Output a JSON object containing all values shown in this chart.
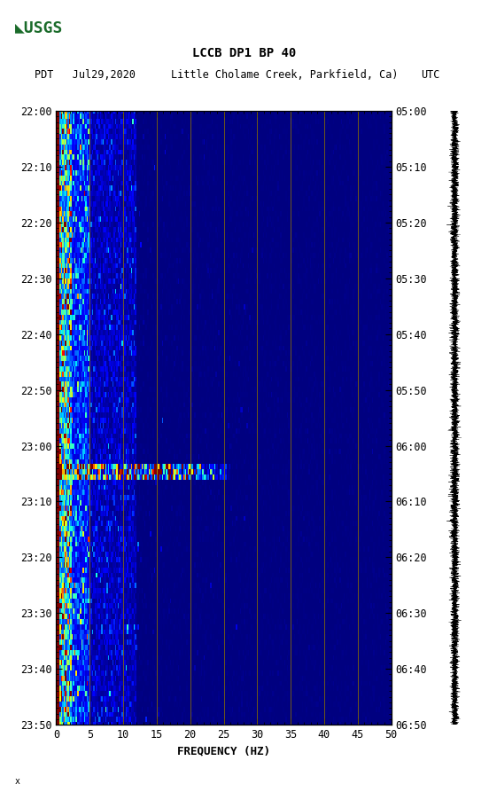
{
  "title_line1": "LCCB DP1 BP 40",
  "title_line2_left": "PDT   Jul29,2020",
  "title_line2_mid": "Little Cholame Creek, Parkfield, Ca)",
  "title_line2_right": "UTC",
  "xlabel": "FREQUENCY (HZ)",
  "freq_min": 0,
  "freq_max": 50,
  "left_ticks": [
    "22:00",
    "22:10",
    "22:20",
    "22:30",
    "22:40",
    "22:50",
    "23:00",
    "23:10",
    "23:20",
    "23:30",
    "23:40",
    "23:50"
  ],
  "right_ticks": [
    "05:00",
    "05:10",
    "05:20",
    "05:30",
    "05:40",
    "05:50",
    "06:00",
    "06:10",
    "06:20",
    "06:30",
    "06:40",
    "06:50"
  ],
  "freq_ticks": [
    0,
    5,
    10,
    15,
    20,
    25,
    30,
    35,
    40,
    45,
    50
  ],
  "vertical_lines_freq": [
    5,
    10,
    15,
    20,
    25,
    30,
    35,
    40,
    45
  ],
  "background_color": "#ffffff",
  "vline_color": "#8B7000",
  "usgs_green": "#1a6b2a",
  "fig_width": 5.52,
  "fig_height": 8.93,
  "dpi": 100
}
